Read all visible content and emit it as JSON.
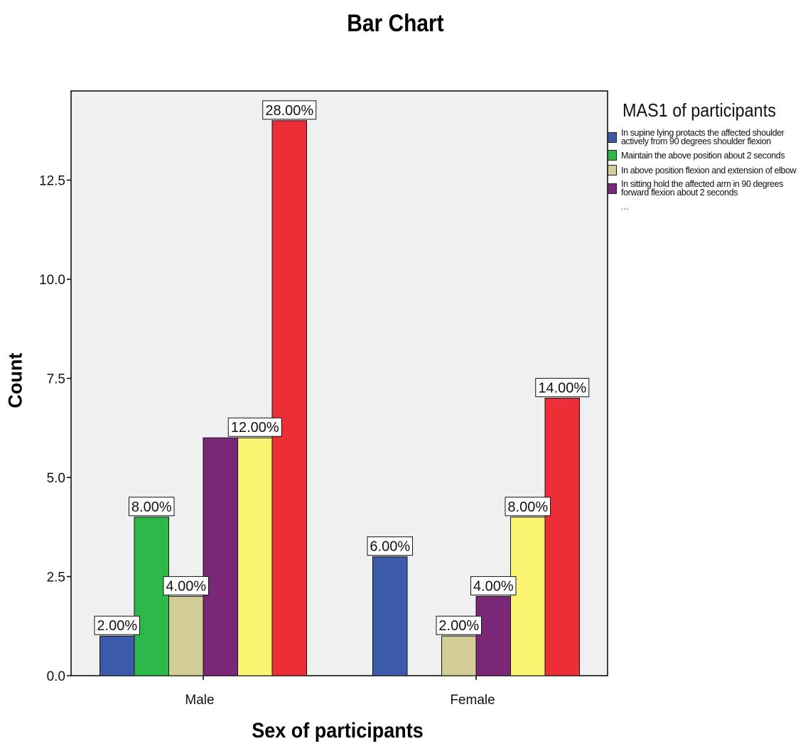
{
  "chart_data": {
    "type": "bar",
    "title": "Bar Chart",
    "xlabel": "Sex of participants",
    "ylabel": "Count",
    "ylim": [
      0,
      14.75
    ],
    "yticks": [
      "0.0",
      "2.5",
      "5.0",
      "7.5",
      "10.0",
      "12.5"
    ],
    "categories": [
      "Male",
      "Female"
    ],
    "legend_title": "MAS1 of participants",
    "legend_position": "right",
    "legend_more": "...",
    "grid": false,
    "background": "#f0f0f0",
    "series": [
      {
        "name": "In supine lying protacts the affected shoulder actively from 90 degrees shoulder flexion",
        "color": "#3c5aaa",
        "values": [
          1,
          3
        ],
        "labels": [
          "2.00%",
          "6.00%"
        ]
      },
      {
        "name": "Maintain the above position about 2 seconds",
        "color": "#2db84a",
        "values": [
          4,
          0
        ],
        "labels": [
          "8.00%",
          ""
        ]
      },
      {
        "name": "In above position flexion and extension of elbow",
        "color": "#d3ce98",
        "values": [
          2,
          1
        ],
        "labels": [
          "4.00%",
          "2.00%"
        ]
      },
      {
        "name": "In sitting hold the affected arm in 90 degrees forward flexion about 2 seconds",
        "color": "#7b2778",
        "values": [
          6,
          2
        ],
        "labels": [
          "",
          "4.00%"
        ]
      },
      {
        "name": "",
        "color": "#faf570",
        "values": [
          6,
          4
        ],
        "labels": [
          "12.00%",
          "8.00%"
        ]
      },
      {
        "name": "",
        "color": "#ee2e37",
        "values": [
          14,
          7
        ],
        "labels": [
          "28.00%",
          "14.00%"
        ]
      }
    ]
  }
}
